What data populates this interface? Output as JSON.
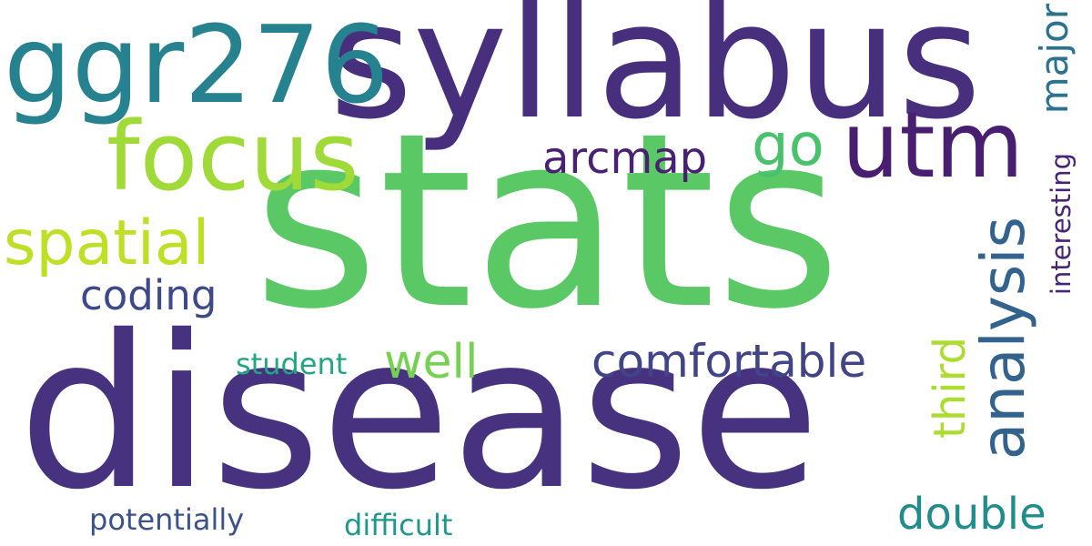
{
  "words": [
    {
      "key": "stats",
      "text": "stats",
      "color": "#5ac864"
    },
    {
      "key": "disease",
      "text": "disease",
      "color": "#46327e"
    },
    {
      "key": "syllabus",
      "text": "syllabus",
      "color": "#472f7d"
    },
    {
      "key": "ggr276",
      "text": "ggr276",
      "color": "#26828e"
    },
    {
      "key": "focus",
      "text": "focus",
      "color": "#a0da39"
    },
    {
      "key": "utm",
      "text": "utm",
      "color": "#481f70"
    },
    {
      "key": "spatial",
      "text": "spatial",
      "color": "#bddf26"
    },
    {
      "key": "analysis",
      "text": "analysis",
      "color": "#33638d"
    },
    {
      "key": "coding",
      "text": "coding",
      "color": "#3e4989"
    },
    {
      "key": "comfortable",
      "text": "comfortable",
      "color": "#414487"
    },
    {
      "key": "well",
      "text": "well",
      "color": "#75d054"
    },
    {
      "key": "go",
      "text": "go",
      "color": "#4ac16d"
    },
    {
      "key": "arcmap",
      "text": "arcmap",
      "color": "#482173"
    },
    {
      "key": "double",
      "text": "double",
      "color": "#228c8d"
    },
    {
      "key": "third",
      "text": "third",
      "color": "#addc30"
    },
    {
      "key": "major",
      "text": "major",
      "color": "#2c728e"
    },
    {
      "key": "interesting",
      "text": "interesting",
      "color": "#482475"
    },
    {
      "key": "student",
      "text": "student",
      "color": "#21a585"
    },
    {
      "key": "potentially",
      "text": "potentially",
      "color": "#3b528b"
    },
    {
      "key": "difficult",
      "text": "difficult",
      "color": "#1f988b"
    }
  ]
}
